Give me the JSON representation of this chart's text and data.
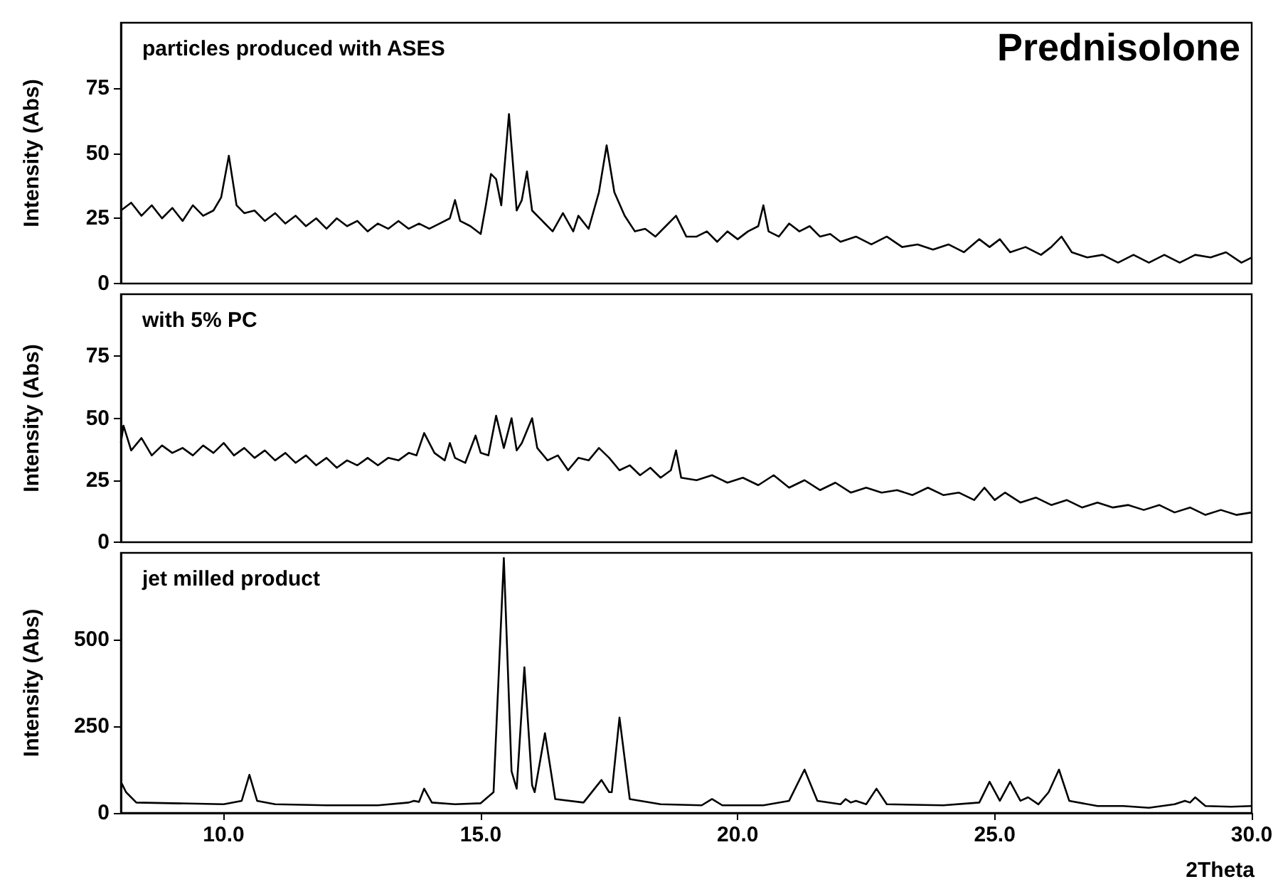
{
  "chart_data": [
    {
      "type": "line",
      "title": "particles produced with ASES",
      "annotations": [
        "Prednisolone"
      ],
      "ylabel": "Intensity (Abs)",
      "color": "#000000",
      "xlim": [
        8,
        30
      ],
      "ylim": [
        0,
        100
      ],
      "yticks": [
        0,
        25,
        50,
        75
      ],
      "tick_labels": "y",
      "x": [
        8.0,
        8.2,
        8.4,
        8.6,
        8.8,
        9.0,
        9.2,
        9.4,
        9.6,
        9.8,
        9.95,
        10.1,
        10.25,
        10.4,
        10.6,
        10.8,
        11.0,
        11.2,
        11.4,
        11.6,
        11.8,
        12.0,
        12.2,
        12.4,
        12.6,
        12.8,
        13.0,
        13.2,
        13.4,
        13.6,
        13.8,
        14.0,
        14.2,
        14.4,
        14.5,
        14.6,
        14.8,
        15.0,
        15.1,
        15.2,
        15.3,
        15.4,
        15.55,
        15.7,
        15.8,
        15.9,
        16.0,
        16.2,
        16.4,
        16.6,
        16.8,
        16.9,
        17.1,
        17.3,
        17.45,
        17.6,
        17.8,
        18.0,
        18.2,
        18.4,
        18.6,
        18.8,
        19.0,
        19.2,
        19.4,
        19.6,
        19.8,
        20.0,
        20.2,
        20.4,
        20.5,
        20.6,
        20.8,
        21.0,
        21.2,
        21.4,
        21.6,
        21.8,
        22.0,
        22.3,
        22.6,
        22.9,
        23.2,
        23.5,
        23.8,
        24.1,
        24.4,
        24.7,
        24.9,
        25.1,
        25.3,
        25.6,
        25.9,
        26.1,
        26.3,
        26.5,
        26.8,
        27.1,
        27.4,
        27.7,
        28.0,
        28.3,
        28.6,
        28.9,
        29.2,
        29.5,
        29.8,
        30.0
      ],
      "values": [
        28,
        31,
        26,
        30,
        25,
        29,
        24,
        30,
        26,
        28,
        33,
        49,
        30,
        27,
        28,
        24,
        27,
        23,
        26,
        22,
        25,
        21,
        25,
        22,
        24,
        20,
        23,
        21,
        24,
        21,
        23,
        21,
        23,
        25,
        32,
        24,
        22,
        19,
        30,
        42,
        40,
        30,
        65,
        28,
        32,
        43,
        28,
        24,
        20,
        27,
        20,
        26,
        21,
        35,
        53,
        35,
        26,
        20,
        21,
        18,
        22,
        26,
        18,
        18,
        20,
        16,
        20,
        17,
        20,
        22,
        30,
        20,
        18,
        23,
        20,
        22,
        18,
        19,
        16,
        18,
        15,
        18,
        14,
        15,
        13,
        15,
        12,
        17,
        14,
        17,
        12,
        14,
        11,
        14,
        18,
        12,
        10,
        11,
        8,
        11,
        8,
        11,
        8,
        11,
        10,
        12,
        8,
        10
      ]
    },
    {
      "type": "line",
      "title": "with 5% PC",
      "ylabel": "Intensity (Abs)",
      "color": "#000000",
      "xlim": [
        8,
        30
      ],
      "ylim": [
        0,
        100
      ],
      "yticks": [
        0,
        25,
        50,
        75
      ],
      "tick_labels": "y",
      "x": [
        8.0,
        8.05,
        8.2,
        8.4,
        8.6,
        8.8,
        9.0,
        9.2,
        9.4,
        9.6,
        9.8,
        10.0,
        10.2,
        10.4,
        10.6,
        10.8,
        11.0,
        11.2,
        11.4,
        11.6,
        11.8,
        12.0,
        12.2,
        12.4,
        12.6,
        12.8,
        13.0,
        13.2,
        13.4,
        13.6,
        13.75,
        13.9,
        14.1,
        14.3,
        14.4,
        14.5,
        14.7,
        14.9,
        15.0,
        15.15,
        15.3,
        15.45,
        15.6,
        15.7,
        15.8,
        16.0,
        16.1,
        16.3,
        16.5,
        16.7,
        16.9,
        17.1,
        17.3,
        17.5,
        17.7,
        17.9,
        18.1,
        18.3,
        18.5,
        18.7,
        18.8,
        18.9,
        19.2,
        19.5,
        19.8,
        20.1,
        20.4,
        20.7,
        21.0,
        21.3,
        21.6,
        21.9,
        22.2,
        22.5,
        22.8,
        23.1,
        23.4,
        23.7,
        24.0,
        24.3,
        24.6,
        24.8,
        25.0,
        25.2,
        25.5,
        25.8,
        26.1,
        26.4,
        26.7,
        27.0,
        27.3,
        27.6,
        27.9,
        28.2,
        28.5,
        28.8,
        29.1,
        29.4,
        29.7,
        30.0
      ],
      "values": [
        40,
        47,
        37,
        42,
        35,
        39,
        36,
        38,
        35,
        39,
        36,
        40,
        35,
        38,
        34,
        37,
        33,
        36,
        32,
        35,
        31,
        34,
        30,
        33,
        31,
        34,
        31,
        34,
        33,
        36,
        35,
        44,
        36,
        33,
        40,
        34,
        32,
        43,
        36,
        35,
        51,
        38,
        50,
        37,
        40,
        50,
        38,
        33,
        35,
        29,
        34,
        33,
        38,
        34,
        29,
        31,
        27,
        30,
        26,
        29,
        37,
        26,
        25,
        27,
        24,
        26,
        23,
        27,
        22,
        25,
        21,
        24,
        20,
        22,
        20,
        21,
        19,
        22,
        19,
        20,
        17,
        22,
        17,
        20,
        16,
        18,
        15,
        17,
        14,
        16,
        14,
        15,
        13,
        15,
        12,
        14,
        11,
        13,
        11,
        12
      ]
    },
    {
      "type": "line",
      "title": "jet milled product",
      "ylabel": "Intensity (Abs)",
      "xlabel": "2Theta",
      "color": "#000000",
      "xlim": [
        8,
        30
      ],
      "xticks": [
        {
          "value": 10,
          "label": "10.0"
        },
        {
          "value": 15,
          "label": "15.0"
        },
        {
          "value": 20,
          "label": "20.0"
        },
        {
          "value": 25,
          "label": "25.0"
        },
        {
          "value": 30,
          "label": "30.0"
        }
      ],
      "ylim": [
        0,
        750
      ],
      "yticks": [
        0,
        250,
        500
      ],
      "x": [
        8.0,
        8.1,
        8.3,
        9.0,
        10.0,
        10.35,
        10.5,
        10.65,
        11.0,
        12.0,
        13.0,
        13.6,
        13.7,
        13.8,
        13.9,
        14.05,
        14.5,
        15.0,
        15.25,
        15.45,
        15.6,
        15.7,
        15.85,
        16.0,
        16.05,
        16.25,
        16.45,
        17.0,
        17.35,
        17.5,
        17.55,
        17.7,
        17.9,
        18.5,
        19.3,
        19.5,
        19.7,
        20.5,
        21.0,
        21.3,
        21.55,
        22.0,
        22.1,
        22.2,
        22.3,
        22.5,
        22.7,
        22.9,
        24.0,
        24.7,
        24.9,
        25.1,
        25.3,
        25.5,
        25.65,
        25.85,
        26.05,
        26.25,
        26.45,
        27.0,
        27.5,
        28.0,
        28.5,
        28.7,
        28.8,
        28.9,
        29.1,
        29.6,
        30.0
      ],
      "values": [
        90,
        60,
        30,
        28,
        25,
        35,
        110,
        35,
        25,
        22,
        22,
        30,
        35,
        32,
        70,
        30,
        25,
        28,
        60,
        735,
        120,
        70,
        420,
        80,
        60,
        230,
        40,
        30,
        95,
        60,
        60,
        275,
        40,
        25,
        22,
        40,
        22,
        22,
        35,
        125,
        35,
        25,
        40,
        30,
        35,
        25,
        70,
        25,
        22,
        30,
        90,
        35,
        90,
        35,
        45,
        25,
        60,
        125,
        35,
        20,
        20,
        15,
        25,
        35,
        30,
        45,
        20,
        18,
        20
      ]
    }
  ]
}
